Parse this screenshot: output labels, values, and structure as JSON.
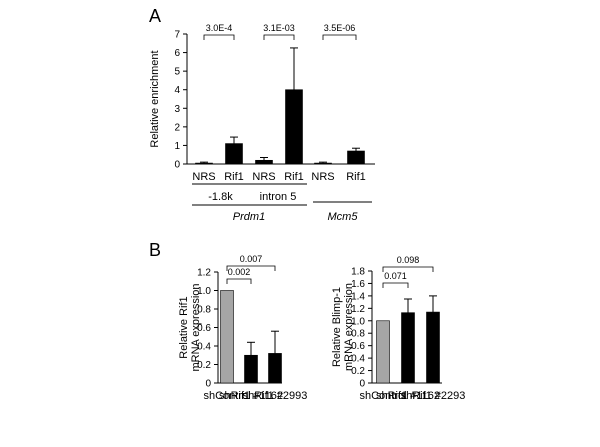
{
  "panel_labels": {
    "a": "A",
    "b": "B"
  },
  "chart_data": [
    {
      "id": "A",
      "type": "bar",
      "ylabel": "Relative enrichment",
      "ylim": [
        0,
        7
      ],
      "yticks": [
        "0",
        "1",
        "2",
        "3",
        "4",
        "5",
        "6",
        "7"
      ],
      "categories": [
        "NRS",
        "Rif1",
        "NRS",
        "Rif1",
        "NRS",
        "Rif1"
      ],
      "values": [
        0.05,
        1.1,
        0.2,
        4.0,
        0.05,
        0.7
      ],
      "errors": [
        0.05,
        0.35,
        0.15,
        2.25,
        0.05,
        0.15
      ],
      "bar_color": "#000000",
      "groups": [
        {
          "label": "-1.8k",
          "members": [
            0,
            1
          ]
        },
        {
          "label": "intron 5",
          "members": [
            2,
            3
          ]
        },
        {
          "label": "Mcm5",
          "members": [
            4,
            5
          ],
          "italic": true
        }
      ],
      "supergroups": [
        {
          "label": "Prdm1",
          "groups": [
            0,
            1
          ],
          "italic": true
        }
      ],
      "pvalues": [
        {
          "from": 0,
          "to": 1,
          "label": "3.0E-4"
        },
        {
          "from": 2,
          "to": 3,
          "label": "3.1E-03"
        },
        {
          "from": 4,
          "to": 5,
          "label": "3.5E-06"
        }
      ]
    },
    {
      "id": "B1",
      "type": "bar",
      "ylabel_lines": [
        "Relative Rif1",
        "mRNA expression"
      ],
      "ylim": [
        0,
        1.2
      ],
      "yticks": [
        "0",
        "0.2",
        "0.4",
        "0.6",
        "0.8",
        "1.0",
        "1.2"
      ],
      "categories": [
        "shControl",
        "shRif1 #1162",
        "shRif1 #2993"
      ],
      "values": [
        1.0,
        0.3,
        0.32
      ],
      "errors": [
        0,
        0.14,
        0.24
      ],
      "colors": [
        "#a6a6a6",
        "#000000",
        "#000000"
      ],
      "pvalues": [
        {
          "from": 0,
          "to": 1,
          "label": "0.002"
        },
        {
          "from": 0,
          "to": 2,
          "label": "0.007"
        }
      ]
    },
    {
      "id": "B2",
      "type": "bar",
      "ylabel_lines": [
        "Relative Blimp-1",
        "mRNA expression"
      ],
      "ylim": [
        0,
        1.8
      ],
      "yticks": [
        "0",
        "0.2",
        "0.4",
        "0.6",
        "0.8",
        "1.0",
        "1.2",
        "1.4",
        "1.6",
        "1.8"
      ],
      "categories": [
        "shControl",
        "shRif1 #1162",
        "shRif1 #2293"
      ],
      "values": [
        1.0,
        1.13,
        1.14
      ],
      "errors": [
        0,
        0.22,
        0.26
      ],
      "colors": [
        "#a6a6a6",
        "#000000",
        "#000000"
      ],
      "pvalues": [
        {
          "from": 0,
          "to": 1,
          "label": "0.071"
        },
        {
          "from": 0,
          "to": 2,
          "label": "0.098"
        }
      ]
    }
  ]
}
